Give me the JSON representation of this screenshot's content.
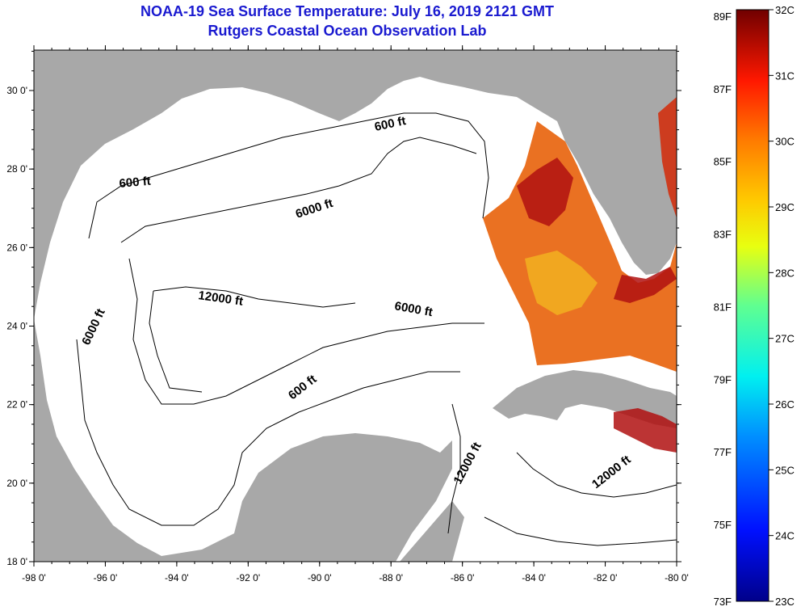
{
  "title_line1": "NOAA-19 Sea Surface Temperature:  July 16, 2019 2121 GMT",
  "title_line2": "Rutgers Coastal Ocean Observation Lab",
  "map": {
    "lon_ticks": [
      "-98 0'",
      "-96 0'",
      "-94 0'",
      "-92 0'",
      "-90 0'",
      "-88 0'",
      "-86 0'",
      "-84 0'",
      "-82 0'",
      "-80 0'"
    ],
    "lat_ticks": [
      "30 0'",
      "28 0'",
      "26 0'",
      "24 0'",
      "22 0'",
      "20 0'",
      "18 0'"
    ],
    "contour_labels": [
      "600 ft",
      "600 ft",
      "6000 ft",
      "12000 ft",
      "6000 ft",
      "6000 ft",
      "600 ft",
      "12000 ft",
      "12000 ft"
    ],
    "colors": {
      "land": "#a8a8a8",
      "ocean": "#ffffff"
    }
  },
  "colorbar": {
    "f_labels": [
      "89F",
      "87F",
      "85F",
      "83F",
      "81F",
      "79F",
      "77F",
      "75F",
      "73F"
    ],
    "c_labels": [
      "32C",
      "31C",
      "30C",
      "29C",
      "28C",
      "27C",
      "26C",
      "25C",
      "24C",
      "23C"
    ]
  }
}
